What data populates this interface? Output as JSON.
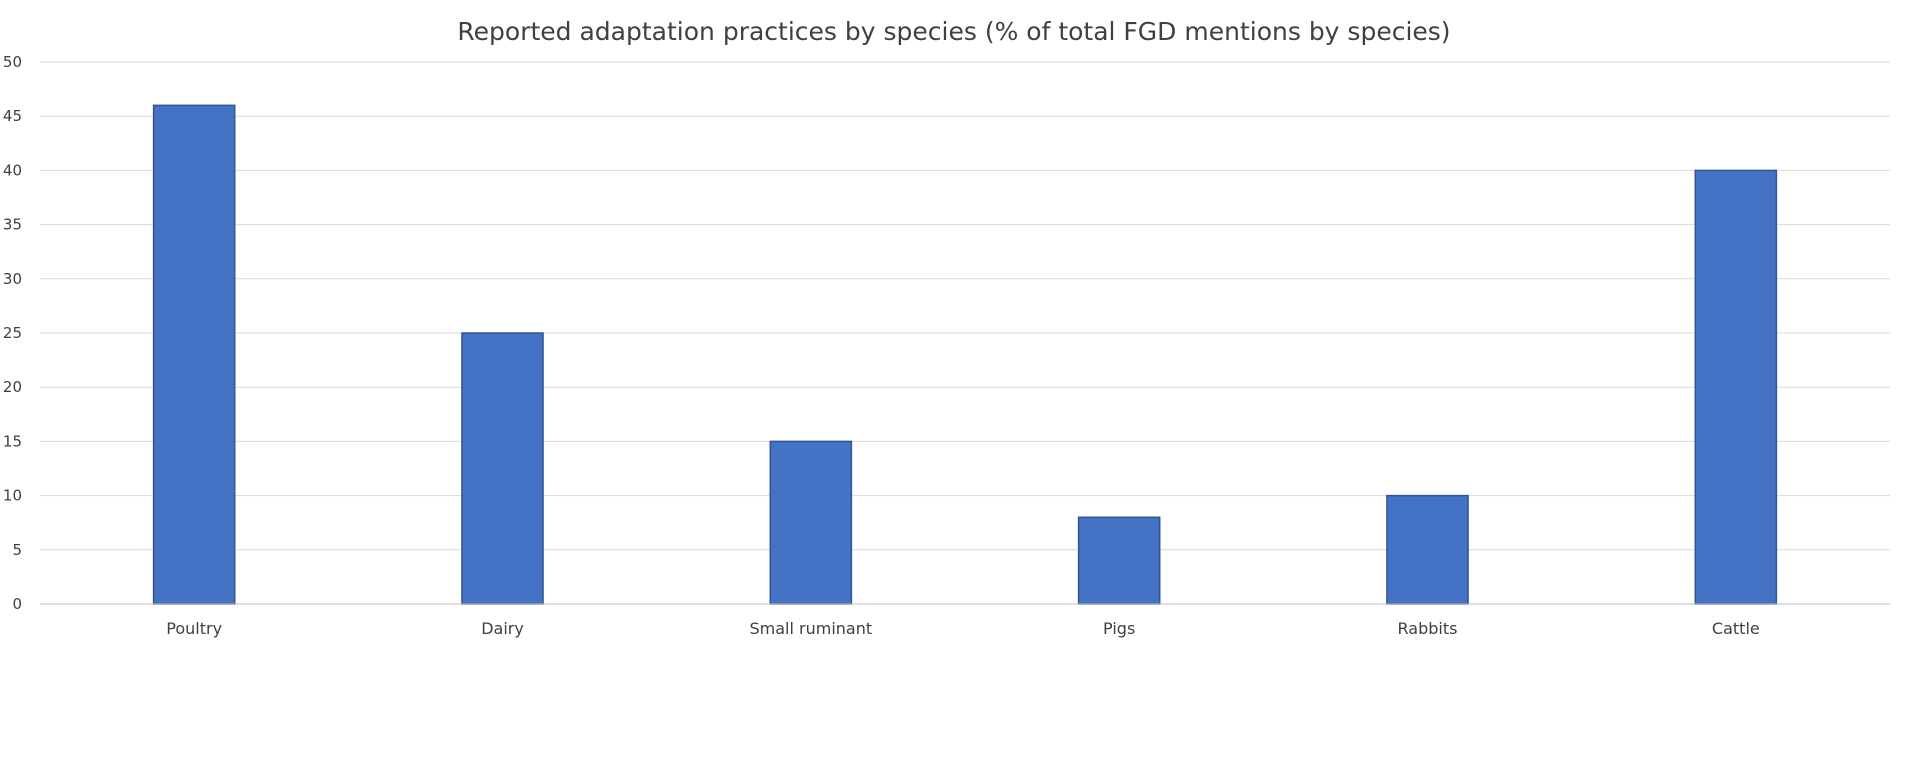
{
  "chart_data": {
    "type": "bar",
    "title": "Reported adaptation practices by species (% of total FGD mentions by species)",
    "xlabel": "",
    "ylabel": "",
    "categories": [
      "Poultry",
      "Dairy",
      "Small ruminant",
      "Pigs",
      "Rabbits",
      "Cattle"
    ],
    "series": [
      {
        "values": [
          46,
          25,
          15,
          8,
          10,
          40
        ]
      }
    ],
    "ylim": [
      0,
      50
    ],
    "yticks": [
      0,
      5,
      10,
      15,
      20,
      25,
      30,
      35,
      40,
      45,
      50
    ],
    "grid": true,
    "legend": "none",
    "colors": {
      "bar_fill": "#4472C4",
      "bar_stroke": "#2F5597",
      "grid": "#D9D9D9",
      "axis": "#BFBFBF",
      "text": "#404040"
    }
  }
}
